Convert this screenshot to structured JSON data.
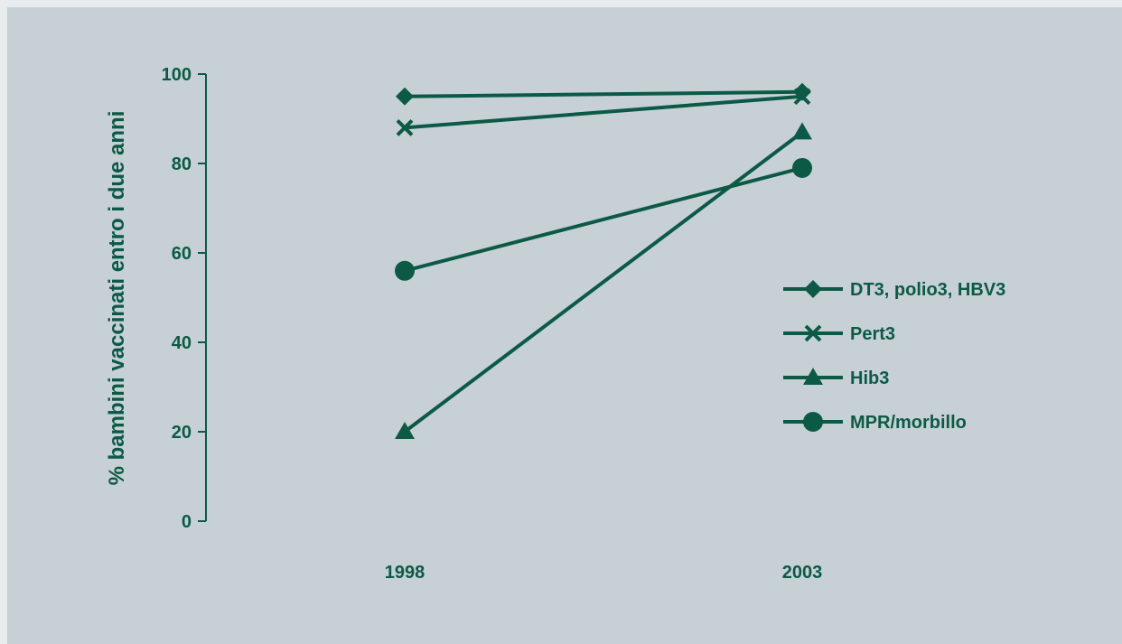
{
  "chart_data": {
    "type": "line",
    "x": [
      "1998",
      "2003"
    ],
    "yticks": [
      "0",
      "20",
      "40",
      "60",
      "80",
      "100"
    ],
    "ylim": [
      0,
      100
    ],
    "ylabel": "% bambini vaccinati entro i due anni",
    "xlabel": "",
    "title": "",
    "legend_position": "right",
    "color": "#0c5a45",
    "series": [
      {
        "name": "DT3, polio3, HBV3",
        "marker": "diamond",
        "values": [
          95,
          96
        ]
      },
      {
        "name": "Pert3",
        "marker": "x",
        "values": [
          88,
          95
        ]
      },
      {
        "name": "Hib3",
        "marker": "triangle",
        "values": [
          20,
          87
        ]
      },
      {
        "name": "MPR/morbillo",
        "marker": "circle",
        "values": [
          56,
          79
        ]
      }
    ]
  }
}
